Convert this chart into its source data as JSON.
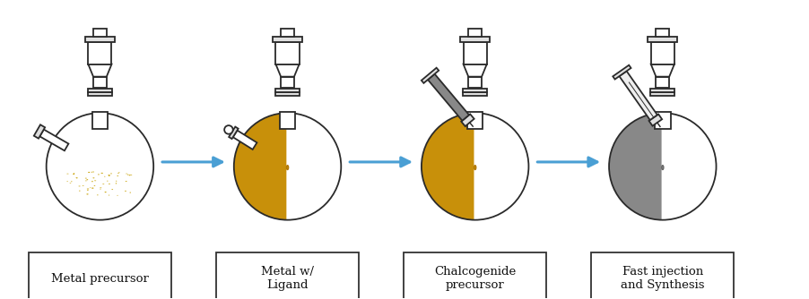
{
  "background_color": "#ffffff",
  "labels": [
    "Metal precursor",
    "Metal w/\nLigand",
    "Chalcogenide\nprecursor",
    "Fast injection\nand Synthesis"
  ],
  "arrow_color": "#4a9fd4",
  "outline_color": "#2a2a2a",
  "liquid_golden": "#c8900a",
  "liquid_dark": "#888888",
  "liquid_golden_surface": "#b07808",
  "liquid_dark_surface": "#666666",
  "particle_color": "#c8a000",
  "label_box_color": "#ffffff",
  "label_box_edge": "#333333",
  "stopper_fill": "#dddddd",
  "syringe_body_grey": "#888888",
  "syringe_body_white": "#eeeeee"
}
